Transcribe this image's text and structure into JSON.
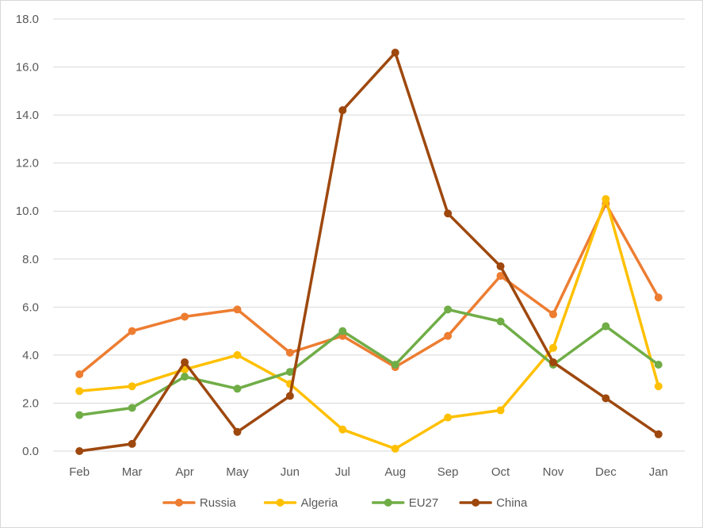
{
  "chart_data": {
    "type": "line",
    "title": "",
    "xlabel": "",
    "ylabel": "",
    "categories": [
      "Feb",
      "Mar",
      "Apr",
      "May",
      "Jun",
      "Jul",
      "Aug",
      "Sep",
      "Oct",
      "Nov",
      "Dec",
      "Jan"
    ],
    "ylim": [
      0,
      18
    ],
    "yticks": [
      "0.0",
      "2.0",
      "4.0",
      "6.0",
      "8.0",
      "10.0",
      "12.0",
      "14.0",
      "16.0",
      "18.0"
    ],
    "grid": "horizontal",
    "legend_position": "bottom",
    "series": [
      {
        "name": "Russia",
        "color": "#ED7D31",
        "values": [
          3.2,
          5.0,
          5.6,
          5.9,
          4.1,
          4.8,
          3.5,
          4.8,
          7.3,
          5.7,
          10.3,
          6.4
        ]
      },
      {
        "name": "Algeria",
        "color": "#FFC000",
        "values": [
          2.5,
          2.7,
          3.4,
          4.0,
          2.8,
          0.9,
          0.1,
          1.4,
          1.7,
          4.3,
          10.5,
          2.7
        ]
      },
      {
        "name": "EU27",
        "color": "#70AD47",
        "values": [
          1.5,
          1.8,
          3.1,
          2.6,
          3.3,
          5.0,
          3.6,
          5.9,
          5.4,
          3.6,
          5.2,
          3.6
        ]
      },
      {
        "name": "China",
        "color": "#9E480E",
        "values": [
          0.0,
          0.3,
          3.7,
          0.8,
          2.3,
          14.2,
          16.6,
          9.9,
          7.7,
          3.7,
          2.2,
          0.7
        ]
      }
    ]
  }
}
